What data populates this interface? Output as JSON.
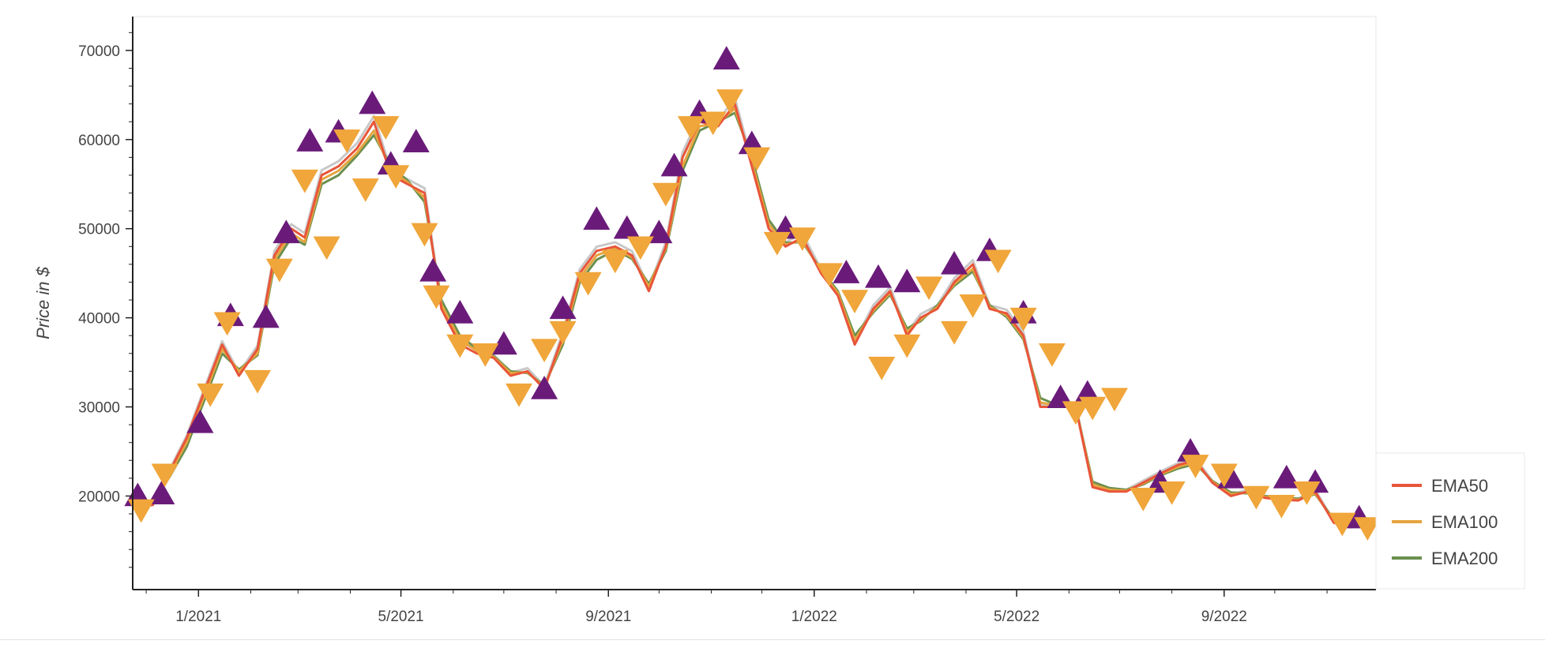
{
  "chart_data": {
    "type": "line",
    "title": "",
    "xlabel": "",
    "ylabel": "Price in $",
    "x_tick_labels": [
      "1/2021",
      "5/2021",
      "9/2021",
      "1/2022",
      "5/2022",
      "9/2022"
    ],
    "x_tick_dates": [
      "2021-01-01",
      "2021-05-01",
      "2021-09-01",
      "2022-01-01",
      "2022-05-01",
      "2022-09-01"
    ],
    "xlim": [
      "2020-11-23",
      "2022-11-30"
    ],
    "y_tick_labels": [
      "20000",
      "30000",
      "40000",
      "50000",
      "60000",
      "70000"
    ],
    "y_ticks": [
      20000,
      30000,
      40000,
      50000,
      60000,
      70000
    ],
    "ylim": [
      9500,
      73800
    ],
    "grid": false,
    "legend_position": "bottom-right, outside plot",
    "colors": {
      "EMA50": "#e8553a",
      "EMA100": "#e6a53e",
      "EMA200": "#6b8f4e",
      "price": "#c8c8c8",
      "buy_marker": "#6a1b7a",
      "sell_marker": "#f0a63a"
    },
    "x": [
      "2020-11-25",
      "2020-12-05",
      "2020-12-15",
      "2020-12-25",
      "2021-01-05",
      "2021-01-15",
      "2021-01-25",
      "2021-02-05",
      "2021-02-15",
      "2021-02-25",
      "2021-03-05",
      "2021-03-15",
      "2021-03-25",
      "2021-04-05",
      "2021-04-15",
      "2021-04-25",
      "2021-05-05",
      "2021-05-15",
      "2021-05-25",
      "2021-06-05",
      "2021-06-15",
      "2021-06-25",
      "2021-07-05",
      "2021-07-15",
      "2021-07-25",
      "2021-08-05",
      "2021-08-15",
      "2021-08-25",
      "2021-09-05",
      "2021-09-15",
      "2021-09-25",
      "2021-10-05",
      "2021-10-15",
      "2021-10-25",
      "2021-11-05",
      "2021-11-15",
      "2021-11-25",
      "2021-12-05",
      "2021-12-15",
      "2021-12-25",
      "2022-01-05",
      "2022-01-15",
      "2022-01-25",
      "2022-02-05",
      "2022-02-15",
      "2022-02-25",
      "2022-03-05",
      "2022-03-15",
      "2022-03-25",
      "2022-04-05",
      "2022-04-15",
      "2022-04-25",
      "2022-05-05",
      "2022-05-15",
      "2022-05-25",
      "2022-06-05",
      "2022-06-15",
      "2022-06-25",
      "2022-07-05",
      "2022-07-15",
      "2022-07-25",
      "2022-08-05",
      "2022-08-15",
      "2022-08-25",
      "2022-09-05",
      "2022-09-15",
      "2022-09-25",
      "2022-10-05",
      "2022-10-15",
      "2022-10-25",
      "2022-11-05",
      "2022-11-15",
      "2022-11-25"
    ],
    "series": [
      {
        "name": "EMA50",
        "values": [
          18800,
          19000,
          22800,
          26500,
          32000,
          37000,
          33500,
          36500,
          47000,
          50000,
          49000,
          56000,
          57000,
          59000,
          62000,
          56000,
          55000,
          54000,
          41000,
          37000,
          36000,
          35500,
          33500,
          34000,
          32000,
          38000,
          45000,
          47500,
          48000,
          47000,
          43000,
          48000,
          58000,
          62000,
          61500,
          64000,
          57000,
          50000,
          48000,
          49000,
          45000,
          42500,
          37000,
          41000,
          43000,
          38000,
          40000,
          41000,
          44000,
          46000,
          41000,
          40500,
          38000,
          30000,
          30000,
          30000,
          21000,
          20500,
          20500,
          21500,
          22500,
          23500,
          24000,
          21500,
          20000,
          20500,
          19800,
          19600,
          19500,
          20500,
          17000,
          16500,
          16800
        ]
      },
      {
        "name": "EMA100",
        "values": [
          18900,
          19200,
          22500,
          26000,
          31500,
          36500,
          34000,
          36000,
          46500,
          49500,
          48500,
          55500,
          56500,
          58500,
          61000,
          56500,
          55200,
          53500,
          41500,
          37500,
          36300,
          35600,
          33800,
          33900,
          32200,
          37500,
          44500,
          47000,
          47800,
          46800,
          43500,
          47800,
          57000,
          61500,
          61800,
          63500,
          57500,
          50500,
          48200,
          48700,
          45200,
          42800,
          37500,
          40800,
          42800,
          38400,
          39800,
          41200,
          43800,
          45500,
          41200,
          40300,
          37800,
          30500,
          30100,
          30000,
          21300,
          20700,
          20600,
          21400,
          22400,
          23300,
          23800,
          21600,
          20200,
          20400,
          19900,
          19700,
          19600,
          20300,
          17200,
          16600,
          16700
        ]
      },
      {
        "name": "EMA200",
        "values": [
          19000,
          19400,
          22200,
          25500,
          31000,
          36000,
          34200,
          35800,
          46000,
          49000,
          48200,
          55000,
          56000,
          58200,
          60500,
          57000,
          55400,
          53000,
          42000,
          38000,
          36500,
          35700,
          34000,
          33800,
          32400,
          37000,
          44000,
          46500,
          47600,
          46600,
          43800,
          47500,
          56500,
          61000,
          62000,
          63000,
          58000,
          51000,
          48400,
          48500,
          45400,
          43000,
          38000,
          40600,
          42600,
          38800,
          39600,
          41400,
          43600,
          45200,
          41400,
          40100,
          37600,
          31000,
          30200,
          30000,
          21600,
          20900,
          20700,
          21300,
          22300,
          23100,
          23600,
          21700,
          20400,
          20300,
          20000,
          19800,
          19700,
          20200,
          17400,
          16700,
          16600
        ]
      }
    ],
    "buy_signals": {
      "dates": [
        "2020-11-26",
        "2020-12-10",
        "2021-01-02",
        "2021-01-20",
        "2021-02-10",
        "2021-02-22",
        "2021-03-08",
        "2021-03-25",
        "2021-04-14",
        "2021-04-25",
        "2021-05-10",
        "2021-05-20",
        "2021-06-05",
        "2021-07-01",
        "2021-07-25",
        "2021-08-05",
        "2021-08-25",
        "2021-09-12",
        "2021-10-01",
        "2021-10-10",
        "2021-10-25",
        "2021-11-10",
        "2021-11-25",
        "2021-12-15",
        "2022-01-20",
        "2022-02-08",
        "2022-02-25",
        "2022-03-25",
        "2022-04-15",
        "2022-05-05",
        "2022-05-27",
        "2022-06-12",
        "2022-07-25",
        "2022-08-12",
        "2022-09-05",
        "2022-10-08",
        "2022-10-25",
        "2022-11-20"
      ],
      "values": [
        20000,
        20200,
        28200,
        40200,
        40000,
        49500,
        59800,
        60800,
        64000,
        57200,
        59700,
        45200,
        40500,
        37000,
        32000,
        41000,
        51000,
        50000,
        49500,
        57000,
        63000,
        69000,
        59500,
        50000,
        45000,
        44500,
        44000,
        46000,
        47500,
        40500,
        31000,
        31500,
        21500,
        25000,
        22000,
        22000,
        21500,
        17500
      ]
    },
    "sell_signals": {
      "dates": [
        "2020-11-28",
        "2020-12-12",
        "2021-01-08",
        "2021-01-18",
        "2021-02-05",
        "2021-02-18",
        "2021-03-05",
        "2021-03-18",
        "2021-03-30",
        "2021-04-10",
        "2021-04-22",
        "2021-04-28",
        "2021-05-15",
        "2021-05-22",
        "2021-06-05",
        "2021-06-20",
        "2021-07-10",
        "2021-07-25",
        "2021-08-05",
        "2021-08-20",
        "2021-09-05",
        "2021-09-20",
        "2021-10-05",
        "2021-10-20",
        "2021-11-02",
        "2021-11-12",
        "2021-11-28",
        "2021-12-10",
        "2021-12-25",
        "2022-01-10",
        "2022-01-25",
        "2022-02-10",
        "2022-02-25",
        "2022-03-10",
        "2022-03-25",
        "2022-04-05",
        "2022-04-20",
        "2022-05-05",
        "2022-05-22",
        "2022-06-05",
        "2022-06-15",
        "2022-06-28",
        "2022-07-15",
        "2022-08-01",
        "2022-08-15",
        "2022-09-01",
        "2022-09-20",
        "2022-10-05",
        "2022-10-20",
        "2022-11-10",
        "2022-11-25"
      ],
      "values": [
        18500,
        22500,
        31500,
        39500,
        33000,
        45500,
        55500,
        48000,
        60000,
        54500,
        61500,
        56000,
        49500,
        42500,
        37000,
        36000,
        31500,
        36500,
        38500,
        44000,
        46500,
        48000,
        54000,
        61500,
        62000,
        64500,
        58000,
        48500,
        49000,
        45000,
        42000,
        34500,
        37000,
        43500,
        38500,
        41500,
        46500,
        40000,
        36000,
        29500,
        30000,
        31000,
        19800,
        20500,
        23500,
        22500,
        20000,
        19000,
        20500,
        17000,
        16500
      ]
    }
  }
}
